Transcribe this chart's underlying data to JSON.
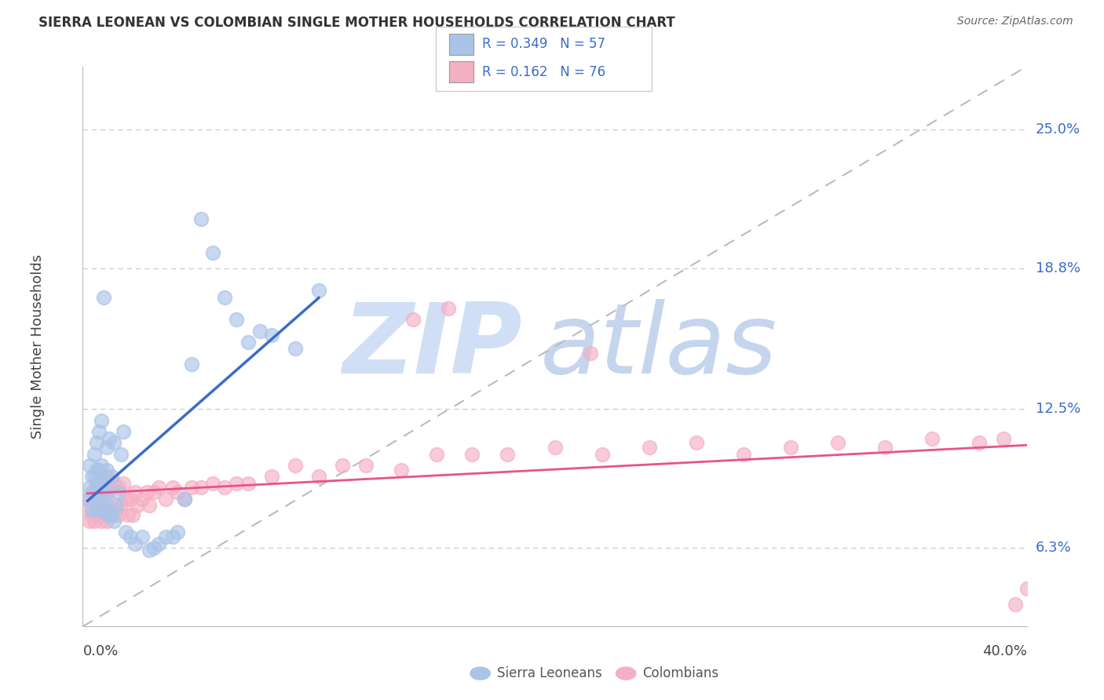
{
  "title": "SIERRA LEONEAN VS COLOMBIAN SINGLE MOTHER HOUSEHOLDS CORRELATION CHART",
  "source": "Source: ZipAtlas.com",
  "ylabel": "Single Mother Households",
  "xlim": [
    0.0,
    0.4
  ],
  "ylim": [
    0.028,
    0.278
  ],
  "ytick_values": [
    0.063,
    0.125,
    0.188,
    0.25
  ],
  "ytick_labels": [
    "6.3%",
    "12.5%",
    "18.8%",
    "25.0%"
  ],
  "xtick_labels": [
    "0.0%",
    "40.0%"
  ],
  "r_sl": "0.349",
  "n_sl": "57",
  "r_col": "0.162",
  "n_col": "76",
  "sl_scatter_color": "#aac4e8",
  "col_scatter_color": "#f5afc3",
  "sl_line_color": "#3a6cc8",
  "col_line_color": "#e8538a",
  "label_color": "#3a6cc8",
  "grid_color": "#c8c8c8",
  "watermark_zip_color": "#d0dff5",
  "watermark_atlas_color": "#c5d5ee",
  "background_color": "#ffffff",
  "sierra_leonean_x": [
    0.002,
    0.003,
    0.003,
    0.004,
    0.004,
    0.005,
    0.005,
    0.005,
    0.006,
    0.006,
    0.006,
    0.006,
    0.007,
    0.007,
    0.007,
    0.007,
    0.008,
    0.008,
    0.008,
    0.008,
    0.009,
    0.009,
    0.01,
    0.01,
    0.01,
    0.01,
    0.011,
    0.011,
    0.012,
    0.012,
    0.013,
    0.013,
    0.014,
    0.015,
    0.016,
    0.017,
    0.018,
    0.02,
    0.022,
    0.025,
    0.028,
    0.03,
    0.032,
    0.035,
    0.038,
    0.04,
    0.043,
    0.046,
    0.05,
    0.055,
    0.06,
    0.065,
    0.07,
    0.075,
    0.08,
    0.09,
    0.1
  ],
  "sierra_leonean_y": [
    0.085,
    0.09,
    0.1,
    0.08,
    0.095,
    0.088,
    0.095,
    0.105,
    0.08,
    0.092,
    0.098,
    0.11,
    0.085,
    0.092,
    0.098,
    0.115,
    0.08,
    0.092,
    0.1,
    0.12,
    0.085,
    0.175,
    0.078,
    0.088,
    0.098,
    0.108,
    0.08,
    0.112,
    0.078,
    0.095,
    0.075,
    0.11,
    0.082,
    0.088,
    0.105,
    0.115,
    0.07,
    0.068,
    0.065,
    0.068,
    0.062,
    0.063,
    0.065,
    0.068,
    0.068,
    0.07,
    0.085,
    0.145,
    0.21,
    0.195,
    0.175,
    0.165,
    0.155,
    0.16,
    0.158,
    0.152,
    0.178
  ],
  "colombian_x": [
    0.002,
    0.003,
    0.003,
    0.004,
    0.004,
    0.005,
    0.005,
    0.006,
    0.006,
    0.007,
    0.007,
    0.008,
    0.008,
    0.008,
    0.009,
    0.009,
    0.01,
    0.01,
    0.01,
    0.011,
    0.011,
    0.012,
    0.012,
    0.013,
    0.013,
    0.014,
    0.015,
    0.015,
    0.016,
    0.017,
    0.018,
    0.019,
    0.02,
    0.021,
    0.022,
    0.023,
    0.025,
    0.027,
    0.028,
    0.03,
    0.032,
    0.035,
    0.038,
    0.04,
    0.043,
    0.046,
    0.05,
    0.055,
    0.06,
    0.065,
    0.07,
    0.08,
    0.09,
    0.1,
    0.11,
    0.12,
    0.135,
    0.15,
    0.165,
    0.18,
    0.2,
    0.22,
    0.24,
    0.26,
    0.28,
    0.3,
    0.32,
    0.34,
    0.36,
    0.38,
    0.39,
    0.14,
    0.155,
    0.4,
    0.395,
    0.215
  ],
  "colombian_y": [
    0.08,
    0.075,
    0.085,
    0.078,
    0.088,
    0.075,
    0.085,
    0.08,
    0.09,
    0.078,
    0.088,
    0.075,
    0.085,
    0.095,
    0.08,
    0.09,
    0.075,
    0.085,
    0.095,
    0.078,
    0.09,
    0.078,
    0.09,
    0.08,
    0.092,
    0.08,
    0.078,
    0.09,
    0.082,
    0.092,
    0.085,
    0.078,
    0.085,
    0.078,
    0.088,
    0.082,
    0.085,
    0.088,
    0.082,
    0.088,
    0.09,
    0.085,
    0.09,
    0.088,
    0.085,
    0.09,
    0.09,
    0.092,
    0.09,
    0.092,
    0.092,
    0.095,
    0.1,
    0.095,
    0.1,
    0.1,
    0.098,
    0.105,
    0.105,
    0.105,
    0.108,
    0.105,
    0.108,
    0.11,
    0.105,
    0.108,
    0.11,
    0.108,
    0.112,
    0.11,
    0.112,
    0.165,
    0.17,
    0.045,
    0.038,
    0.15
  ]
}
